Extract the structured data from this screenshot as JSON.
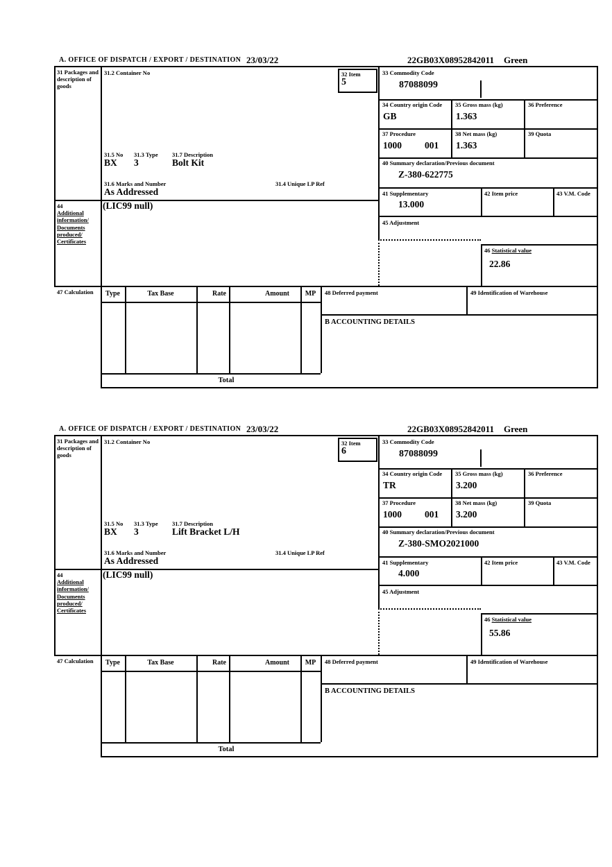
{
  "labels": {
    "office": "A. OFFICE OF DISPATCH / EXPORT / DESTINATION",
    "box31": "31 Packages and description of goods",
    "box31_2": "31.2 Container No",
    "box32": "32 Item",
    "box33": "33 Commodity Code",
    "box34": "34 Country origin Code",
    "box35": "35 Gross mass (kg)",
    "box36": "36 Preference",
    "box37": "37 Procedure",
    "box38": "38 Net mass (kg)",
    "box39": "39 Quota",
    "box31_5": "31.5 No",
    "box31_3": "31.3 Type",
    "box31_7": "31.7 Description",
    "box40": "40 Summary declaration/Previous document",
    "box31_6": "31.6 Marks and Number",
    "box31_4": "31.4 Unique LP Ref",
    "box41": "41 Supplementary",
    "box42": "42 Item price",
    "box43": "43 V.M. Code",
    "box44_no": "44",
    "box44_text": "Additional information/ Documents produced/ Certificates",
    "box45": "45 Adjustment",
    "box46_no": "46",
    "box46_text": "Statistical value",
    "box47": "47 Calculation",
    "col_type": "Type",
    "col_tax_base": "Tax Base",
    "col_rate": "Rate",
    "col_amount": "Amount",
    "col_mp": "MP",
    "total": "Total",
    "box48": "48 Deferred payment",
    "box49": "49 Identification of Warehouse",
    "accounting": "B ACCOUNTING DETAILS"
  },
  "sections": [
    {
      "date": "23/03/22",
      "reference": "22GB03X08952842011",
      "status": "Green",
      "item": "5",
      "commodity_code": "87088099",
      "country_origin_code": "GB",
      "gross_mass_kg": "1.363",
      "procedure": "1000",
      "procedure_extra": "001",
      "net_mass_kg": "1.363",
      "package_no": "BX",
      "package_type": "3",
      "description": "Bolt Kit",
      "summary_declaration": "Z-380-622775",
      "marks_and_number": "As Addressed",
      "supplementary": "13.000",
      "additional_information": "(LIC99 null)",
      "statistical_value": "22.86"
    },
    {
      "date": "23/03/22",
      "reference": "22GB03X08952842011",
      "status": "Green",
      "item": "6",
      "commodity_code": "87088099",
      "country_origin_code": "TR",
      "gross_mass_kg": "3.200",
      "procedure": "1000",
      "procedure_extra": "001",
      "net_mass_kg": "3.200",
      "package_no": "BX",
      "package_type": "3",
      "description": "Lift Bracket L/H",
      "summary_declaration": "Z-380-SMO2021000",
      "marks_and_number": "As Addressed",
      "supplementary": "4.000",
      "additional_information": "(LIC99 null)",
      "statistical_value": "55.86"
    }
  ]
}
